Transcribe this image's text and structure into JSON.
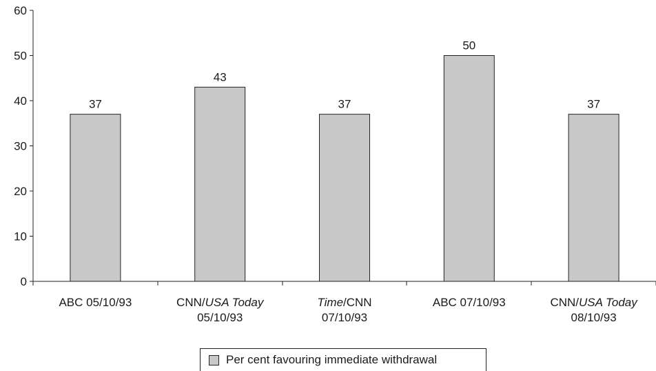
{
  "chart_data": {
    "type": "bar",
    "categories": [
      [
        "ABC 05/10/93"
      ],
      [
        "CNN/USA Today",
        "05/10/93"
      ],
      [
        "Time/CNN",
        "07/10/93"
      ],
      [
        "ABC 07/10/93"
      ],
      [
        "CNN/USA Today",
        "08/10/93"
      ]
    ],
    "series": [
      {
        "name": "Per cent favouring immediate withdrawal",
        "values": [
          37,
          43,
          37,
          50,
          37
        ],
        "color": "#c8c8c8"
      }
    ],
    "data_labels": [
      "37",
      "43",
      "37",
      "50",
      "37"
    ],
    "ylim": [
      0,
      60
    ],
    "yticks": [
      0,
      10,
      20,
      30,
      40,
      50,
      60
    ],
    "italic_fragments": [
      "USA Today",
      "Time"
    ],
    "grid": false,
    "legend_position": "bottom-center",
    "title": "",
    "xlabel": "",
    "ylabel": ""
  }
}
